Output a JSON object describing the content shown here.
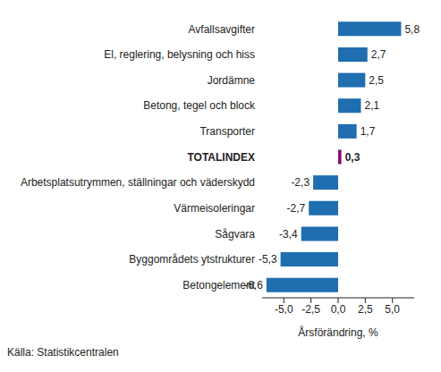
{
  "chart_data": {
    "type": "bar",
    "orientation": "horizontal",
    "categories": [
      "Avfallsavgifter",
      "El, reglering, belysning och hiss",
      "Jordämne",
      "Betong, tegel och block",
      "Transporter",
      "TOTALINDEX",
      "Arbetsplatsutrymmen, ställningar och väderskydd",
      "Värmeisoleringar",
      "Sågvara",
      "Byggområdets ytstrukturer",
      "Betongelement"
    ],
    "values": [
      5.8,
      2.7,
      2.5,
      2.1,
      1.7,
      0.3,
      -2.3,
      -2.7,
      -3.4,
      -5.3,
      -6.6
    ],
    "value_labels": [
      "5,8",
      "2,7",
      "2,5",
      "2,1",
      "1,7",
      "0,3",
      "-2,3",
      "-2,7",
      "-3,4",
      "-5,3",
      "-6,6"
    ],
    "colors": [
      "#1f6eb0",
      "#1f6eb0",
      "#1f6eb0",
      "#1f6eb0",
      "#1f6eb0",
      "#8c0a78",
      "#1f6eb0",
      "#1f6eb0",
      "#1f6eb0",
      "#1f6eb0",
      "#1f6eb0"
    ],
    "data_labels": true,
    "xlabel": "Årsförändring, %",
    "xlim": [
      -7,
      7
    ],
    "xticks": [
      {
        "value": -5,
        "label": "-5,0"
      },
      {
        "value": -2.5,
        "label": "-2,5"
      },
      {
        "value": 0,
        "label": "0,0"
      },
      {
        "value": 2.5,
        "label": "2,5"
      },
      {
        "value": 5,
        "label": "5,0"
      }
    ],
    "grid": false,
    "annotations": [
      "Källa: Statistikcentralen"
    ]
  }
}
